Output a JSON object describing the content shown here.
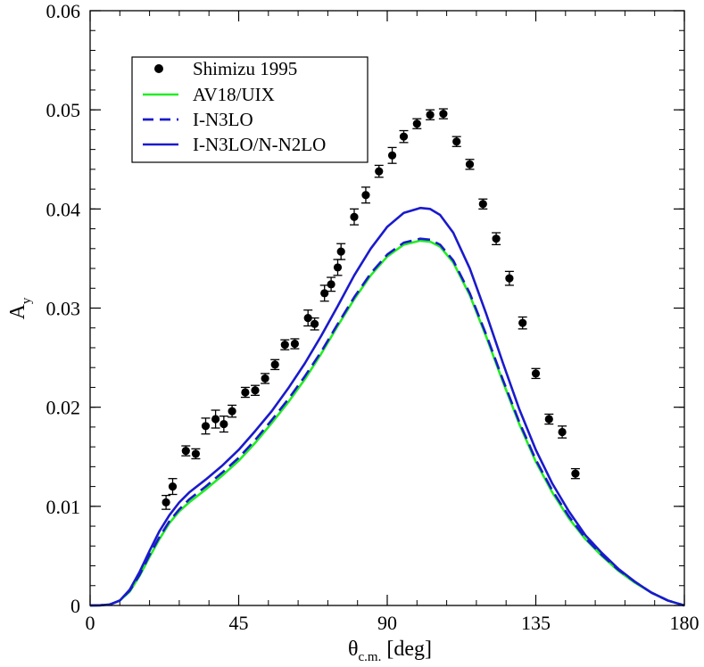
{
  "chart_data": {
    "type": "line",
    "title": "",
    "xlabel": {
      "main": "θ",
      "sub": "c.m.",
      "unit": "[deg]"
    },
    "ylabel": {
      "main": "A",
      "sub": "y"
    },
    "xlim": [
      0,
      180
    ],
    "ylim": [
      0,
      0.06
    ],
    "grid": false,
    "legend_position": "top-left",
    "x_ticks": [
      {
        "value": 0,
        "label": "0"
      },
      {
        "value": 45,
        "label": "45"
      },
      {
        "value": 90,
        "label": "90"
      },
      {
        "value": 135,
        "label": "135"
      },
      {
        "value": 180,
        "label": "180"
      }
    ],
    "y_ticks": [
      {
        "value": 0,
        "label": "0"
      },
      {
        "value": 0.01,
        "label": "0.01"
      },
      {
        "value": 0.02,
        "label": "0.02"
      },
      {
        "value": 0.03,
        "label": "0.03"
      },
      {
        "value": 0.04,
        "label": "0.04"
      },
      {
        "value": 0.05,
        "label": "0.05"
      },
      {
        "value": 0.06,
        "label": "0.06"
      }
    ],
    "x_minor_step": 9,
    "y_minor_step": 0.002,
    "series": [
      {
        "name": "Shimizu 1995",
        "style": "points",
        "color": "#000000",
        "x": [
          23,
          25,
          29,
          32,
          35,
          38,
          40.5,
          43,
          47,
          50,
          53,
          56,
          59,
          62,
          66,
          68,
          71,
          73,
          75,
          76,
          80,
          83.5,
          87.5,
          91.5,
          95,
          99,
          103,
          107,
          111,
          115,
          119,
          123,
          127,
          131,
          135,
          139,
          143,
          147
        ],
        "y": [
          0.0104,
          0.012,
          0.0156,
          0.0153,
          0.0181,
          0.0188,
          0.0183,
          0.0196,
          0.0215,
          0.0217,
          0.0229,
          0.0243,
          0.0263,
          0.0264,
          0.029,
          0.0284,
          0.0315,
          0.0324,
          0.0341,
          0.0357,
          0.0392,
          0.0414,
          0.0438,
          0.0454,
          0.0473,
          0.0486,
          0.0495,
          0.0496,
          0.0468,
          0.0445,
          0.0405,
          0.037,
          0.033,
          0.0285,
          0.0234,
          0.0188,
          0.0175,
          0.0133
        ],
        "err": [
          0.0007,
          0.0008,
          0.0005,
          0.0005,
          0.0008,
          0.0009,
          0.0008,
          0.0006,
          0.0005,
          0.0005,
          0.0005,
          0.0005,
          0.0005,
          0.0005,
          0.0008,
          0.0006,
          0.0008,
          0.0007,
          0.0008,
          0.0008,
          0.0008,
          0.0008,
          0.0006,
          0.0008,
          0.0006,
          0.0005,
          0.0005,
          0.0005,
          0.0005,
          0.0005,
          0.0005,
          0.0006,
          0.0007,
          0.0006,
          0.0005,
          0.0005,
          0.0006,
          0.0005
        ]
      },
      {
        "name": "AV18/UIX",
        "style": "solid",
        "color": "#22ee22",
        "x": [
          0,
          3,
          6,
          9,
          12,
          15,
          18,
          21,
          24,
          27,
          30,
          35,
          40,
          45,
          50,
          55,
          60,
          65,
          70,
          75,
          80,
          85,
          90,
          95,
          100,
          103,
          106,
          110,
          115,
          120,
          125,
          130,
          135,
          140,
          145,
          150,
          155,
          160,
          165,
          170,
          175,
          180
        ],
        "y": [
          0,
          2e-05,
          0.0001,
          0.0005,
          0.0014,
          0.003,
          0.0049,
          0.0067,
          0.0083,
          0.0095,
          0.0104,
          0.0117,
          0.0131,
          0.0146,
          0.0164,
          0.0184,
          0.0205,
          0.0228,
          0.0254,
          0.0282,
          0.0309,
          0.0333,
          0.0352,
          0.0364,
          0.0368,
          0.0367,
          0.0362,
          0.0346,
          0.0313,
          0.0271,
          0.0226,
          0.0183,
          0.0145,
          0.0114,
          0.0088,
          0.0067,
          0.005,
          0.0035,
          0.0023,
          0.0013,
          0.0005,
          0
        ]
      },
      {
        "name": "I-N3LO",
        "style": "dashed",
        "color": "#1a1acc",
        "x": [
          0,
          3,
          6,
          9,
          12,
          15,
          18,
          21,
          24,
          27,
          30,
          35,
          40,
          45,
          50,
          55,
          60,
          65,
          70,
          75,
          80,
          85,
          90,
          95,
          100,
          103,
          106,
          110,
          115,
          120,
          125,
          130,
          135,
          140,
          145,
          150,
          155,
          160,
          165,
          170,
          175,
          180
        ],
        "y": [
          0,
          2e-05,
          0.0001,
          0.0005,
          0.0015,
          0.0031,
          0.0051,
          0.0069,
          0.0085,
          0.0097,
          0.0107,
          0.012,
          0.0134,
          0.0149,
          0.0167,
          0.0187,
          0.0208,
          0.0231,
          0.0256,
          0.0284,
          0.0311,
          0.0335,
          0.0354,
          0.0366,
          0.037,
          0.0369,
          0.0364,
          0.0348,
          0.0315,
          0.0273,
          0.0228,
          0.0185,
          0.0147,
          0.0116,
          0.009,
          0.0068,
          0.0051,
          0.0036,
          0.0024,
          0.0013,
          0.0005,
          0
        ]
      },
      {
        "name": "I-N3LO/N-N2LO",
        "style": "solid",
        "color": "#1a1acc",
        "x": [
          0,
          3,
          6,
          9,
          12,
          15,
          18,
          21,
          24,
          27,
          30,
          35,
          40,
          45,
          50,
          55,
          60,
          65,
          70,
          75,
          80,
          85,
          90,
          95,
          100,
          103,
          106,
          110,
          115,
          120,
          125,
          130,
          135,
          140,
          145,
          150,
          155,
          160,
          165,
          170,
          175,
          180
        ],
        "y": [
          0,
          2e-05,
          0.0001,
          0.0005,
          0.0016,
          0.0034,
          0.0055,
          0.0075,
          0.0091,
          0.0104,
          0.0114,
          0.0127,
          0.0141,
          0.0157,
          0.0176,
          0.0196,
          0.0219,
          0.0244,
          0.0272,
          0.0302,
          0.0333,
          0.036,
          0.0382,
          0.0396,
          0.0401,
          0.04,
          0.0394,
          0.0376,
          0.034,
          0.0294,
          0.0245,
          0.0198,
          0.0157,
          0.0123,
          0.0095,
          0.0071,
          0.0053,
          0.0037,
          0.0024,
          0.0013,
          0.0005,
          0
        ]
      }
    ]
  }
}
